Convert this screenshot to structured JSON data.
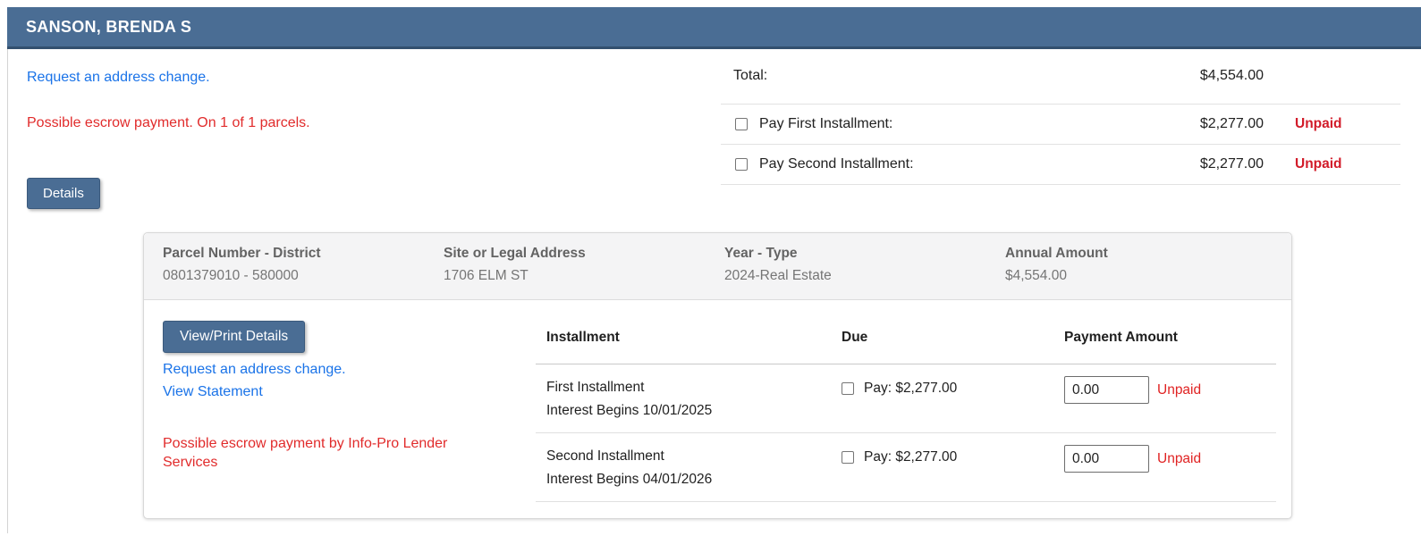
{
  "header": {
    "title": "SANSON, BRENDA S"
  },
  "summary": {
    "address_change_link": "Request an address change.",
    "escrow_notice": "Possible escrow payment. On 1 of 1 parcels.",
    "details_button": "Details",
    "totals": {
      "total_label": "Total:",
      "total_amount": "$4,554.00",
      "rows": [
        {
          "label": "Pay First Installment:",
          "amount": "$2,277.00",
          "status": "Unpaid",
          "checked": false
        },
        {
          "label": "Pay Second Installment:",
          "amount": "$2,277.00",
          "status": "Unpaid",
          "checked": false
        }
      ]
    }
  },
  "parcel_card": {
    "header_columns": [
      {
        "label": "Parcel Number - District",
        "value": "0801379010 - 580000"
      },
      {
        "label": "Site or Legal Address",
        "value": "1706 ELM ST"
      },
      {
        "label": "Year - Type",
        "value": "2024-Real Estate"
      },
      {
        "label": "Annual Amount",
        "value": "$4,554.00"
      }
    ],
    "actions": {
      "view_print_button": "View/Print Details",
      "address_change_link": "Request an address change.",
      "view_statement_link": "View Statement",
      "escrow_notice": "Possible escrow payment by Info-Pro Lender Services"
    },
    "installments": {
      "headers": {
        "installment": "Installment",
        "due": "Due",
        "payment_amount": "Payment Amount"
      },
      "rows": [
        {
          "name": "First Installment",
          "interest": "Interest Begins 10/01/2025",
          "due": "Pay: $2,277.00",
          "payment_value": "0.00",
          "status": "Unpaid",
          "checked": false
        },
        {
          "name": "Second Installment",
          "interest": "Interest Begins 04/01/2026",
          "due": "Pay: $2,277.00",
          "payment_value": "0.00",
          "status": "Unpaid",
          "checked": false
        }
      ]
    }
  },
  "colors": {
    "header_bar_blue": "#4a6d94",
    "button_blue": "#4a6d94",
    "link_blue": "#1a73e8",
    "notice_red": "#e12b2b",
    "status_red": "#d21c2a"
  }
}
